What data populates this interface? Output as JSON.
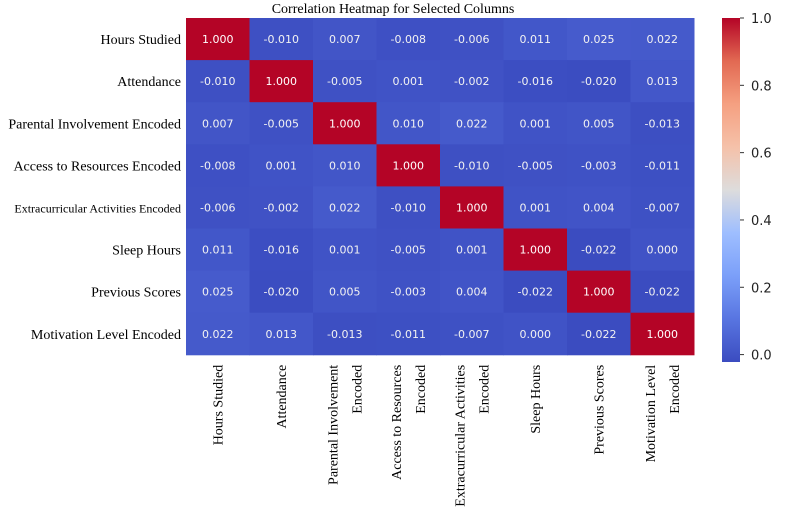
{
  "chart_data": {
    "type": "heatmap",
    "title": "Correlation Heatmap for Selected Columns",
    "rows": [
      "Hours Studied",
      "Attendance",
      "Parental Involvement Encoded",
      "Access to Resources Encoded",
      "Extracurricular Activities Encoded",
      "Sleep Hours",
      "Previous Scores",
      "Motivation Level Encoded"
    ],
    "columns": [
      [
        "Hours Studied"
      ],
      [
        "Attendance"
      ],
      [
        "Parental Involvement",
        "Encoded"
      ],
      [
        "Access to Resources",
        "Encoded"
      ],
      [
        "Extracurricular Activities",
        "Encoded"
      ],
      [
        "Sleep Hours"
      ],
      [
        "Previous Scores"
      ],
      [
        "Motivation Level",
        "Encoded"
      ]
    ],
    "values": [
      [
        1.0,
        -0.01,
        0.007,
        -0.008,
        -0.006,
        0.011,
        0.025,
        0.022
      ],
      [
        -0.01,
        1.0,
        -0.005,
        0.001,
        -0.002,
        -0.016,
        -0.02,
        0.013
      ],
      [
        0.007,
        -0.005,
        1.0,
        0.01,
        0.022,
        0.001,
        0.005,
        -0.013
      ],
      [
        -0.008,
        0.001,
        0.01,
        1.0,
        -0.01,
        -0.005,
        -0.003,
        -0.011
      ],
      [
        -0.006,
        -0.002,
        0.022,
        -0.01,
        1.0,
        0.001,
        0.004,
        -0.007
      ],
      [
        0.011,
        -0.016,
        0.001,
        -0.005,
        0.001,
        1.0,
        -0.022,
        0.0
      ],
      [
        0.025,
        -0.02,
        0.005,
        -0.003,
        0.004,
        -0.022,
        1.0,
        -0.022
      ],
      [
        0.022,
        0.013,
        -0.013,
        -0.011,
        -0.007,
        0.0,
        -0.022,
        1.0
      ]
    ],
    "value_format": "3 decimals",
    "colorbar": {
      "min": -0.022,
      "max": 1.0,
      "ticks": [
        0.0,
        0.2,
        0.4,
        0.6,
        0.8,
        1.0
      ],
      "tick_labels": [
        "0.0",
        "0.2",
        "0.4",
        "0.6",
        "0.8",
        "1.0"
      ],
      "colormap": "coolwarm"
    }
  }
}
